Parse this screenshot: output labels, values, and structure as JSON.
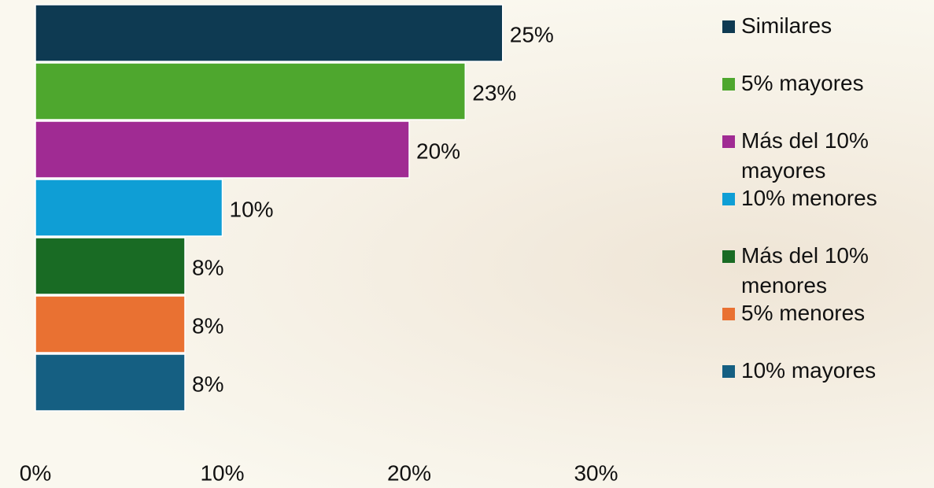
{
  "chart_data": {
    "type": "bar",
    "orientation": "horizontal",
    "series": [
      {
        "name": "Similares",
        "color": "#0e3a52",
        "values": [
          25
        ],
        "value_labels": [
          "25%"
        ]
      },
      {
        "name": "5% mayores",
        "color": "#4ea72e",
        "values": [
          23
        ],
        "value_labels": [
          "23%"
        ]
      },
      {
        "name": "Más del 10% mayores",
        "color": "#a02b93",
        "values": [
          20
        ],
        "value_labels": [
          "20%"
        ]
      },
      {
        "name": "10% menores",
        "color": "#0f9ed5",
        "values": [
          10
        ],
        "value_labels": [
          "10%"
        ]
      },
      {
        "name": "Más del 10% menores",
        "color": "#196b24",
        "values": [
          8
        ],
        "value_labels": [
          "8%"
        ]
      },
      {
        "name": "5% menores",
        "color": "#e97132",
        "values": [
          8
        ],
        "value_labels": [
          "8%"
        ]
      },
      {
        "name": "10% mayores",
        "color": "#155f82",
        "values": [
          8
        ],
        "value_labels": [
          "8%"
        ]
      }
    ],
    "xlim": [
      0,
      30
    ],
    "xticks": [
      {
        "value": 0,
        "label": "0%"
      },
      {
        "value": 10,
        "label": "10%"
      },
      {
        "value": 20,
        "label": "20%"
      },
      {
        "value": 30,
        "label": "30%"
      }
    ],
    "grid": false
  }
}
